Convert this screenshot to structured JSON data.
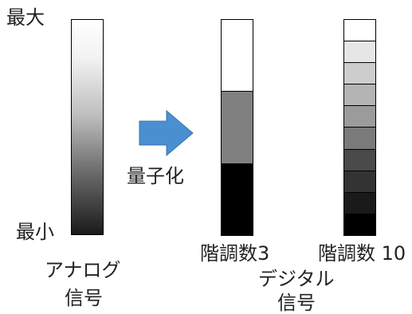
{
  "labels": {
    "max": "最大",
    "min": "最小",
    "quantize": "量子化",
    "levels3": "階調数3",
    "levels10": "階調数 10",
    "analog_line1": "アナログ",
    "analog_line2": "信号",
    "digital_line1": "デジタル",
    "digital_line2": "信号"
  },
  "levels3_colors": [
    "#ffffff",
    "#808080",
    "#000000"
  ],
  "levels10_colors": [
    "#ffffff",
    "#e6e6e6",
    "#cdcdcd",
    "#b4b4b4",
    "#9b9b9b",
    "#7a7a7a",
    "#4a4a4a",
    "#333333",
    "#1a1a1a",
    "#000000"
  ],
  "arrow_color": "#4a8fd0"
}
